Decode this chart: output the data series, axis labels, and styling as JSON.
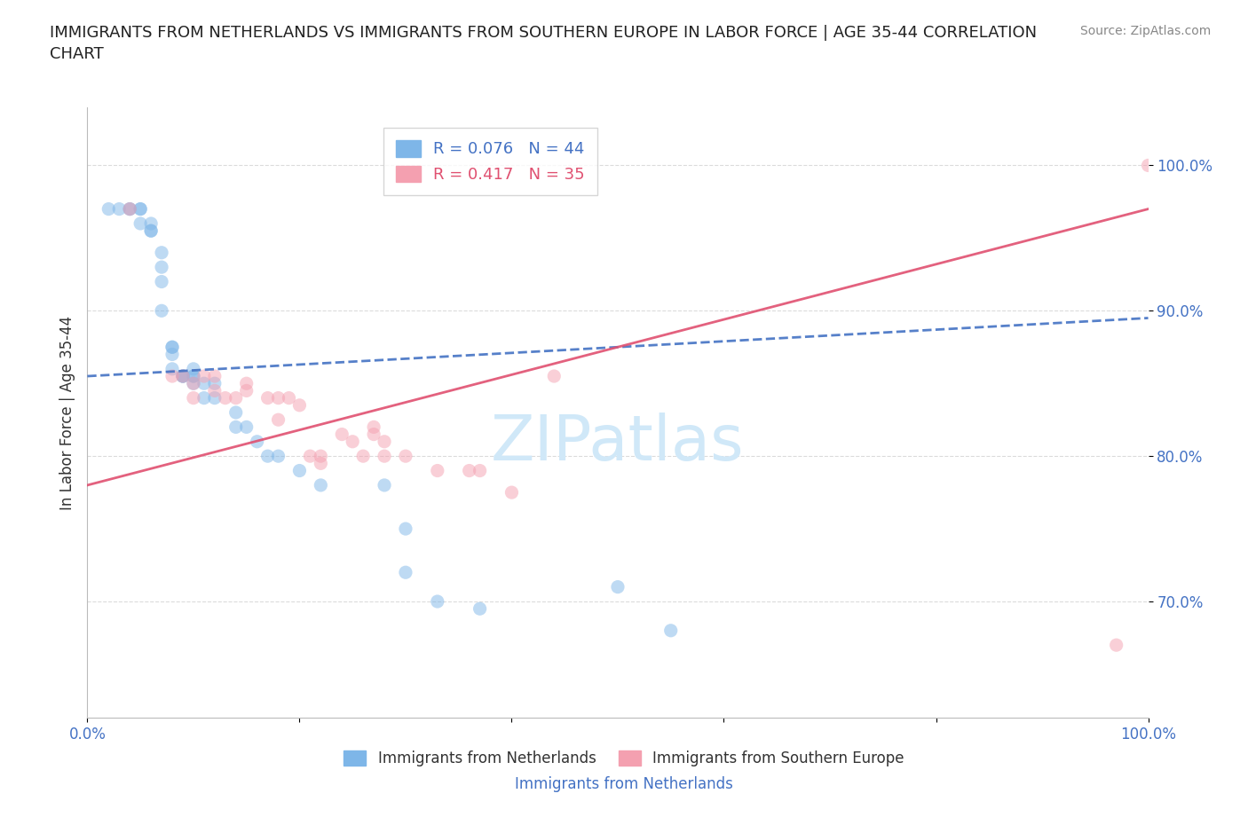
{
  "title": "IMMIGRANTS FROM NETHERLANDS VS IMMIGRANTS FROM SOUTHERN EUROPE IN LABOR FORCE | AGE 35-44 CORRELATION\nCHART",
  "xlabel": "",
  "ylabel": "In Labor Force | Age 35-44",
  "source_text": "Source: ZipAtlas.com",
  "watermark": "ZIPatlas",
  "x_label_bottom": "Immigrants from Netherlands",
  "legend_label1": "Immigrants from Netherlands",
  "legend_label2": "Immigrants from Southern Europe",
  "R1": 0.076,
  "N1": 44,
  "R2": 0.417,
  "N2": 35,
  "xlim": [
    0.0,
    1.0
  ],
  "ylim": [
    0.62,
    1.04
  ],
  "yticks": [
    0.7,
    0.8,
    0.9,
    1.0
  ],
  "ytick_labels": [
    "70.0%",
    "80.0%",
    "90.0%",
    "100.0%"
  ],
  "xticks": [
    0.0,
    0.2,
    0.4,
    0.6,
    0.8,
    1.0
  ],
  "xtick_labels": [
    "0.0%",
    "",
    "",
    "",
    "",
    "100.0%"
  ],
  "color_blue": "#7EB6E8",
  "color_pink": "#F4A0B0",
  "line_color_blue": "#4472C4",
  "line_color_pink": "#E05070",
  "grid_color": "#CCCCCC",
  "title_color": "#222222",
  "axis_label_color": "#333333",
  "tick_label_color": "#4472C4",
  "source_color": "#888888",
  "watermark_color": "#D0E8F8",
  "blue_points_x": [
    0.02,
    0.03,
    0.04,
    0.04,
    0.05,
    0.05,
    0.05,
    0.06,
    0.06,
    0.06,
    0.07,
    0.07,
    0.07,
    0.07,
    0.08,
    0.08,
    0.08,
    0.08,
    0.09,
    0.09,
    0.09,
    0.1,
    0.1,
    0.1,
    0.1,
    0.11,
    0.11,
    0.12,
    0.12,
    0.14,
    0.14,
    0.15,
    0.16,
    0.17,
    0.18,
    0.2,
    0.22,
    0.28,
    0.3,
    0.3,
    0.33,
    0.37,
    0.5,
    0.55
  ],
  "blue_points_y": [
    0.97,
    0.97,
    0.97,
    0.97,
    0.97,
    0.97,
    0.96,
    0.955,
    0.955,
    0.96,
    0.94,
    0.93,
    0.92,
    0.9,
    0.875,
    0.875,
    0.87,
    0.86,
    0.855,
    0.855,
    0.855,
    0.855,
    0.855,
    0.86,
    0.85,
    0.85,
    0.84,
    0.84,
    0.85,
    0.83,
    0.82,
    0.82,
    0.81,
    0.8,
    0.8,
    0.79,
    0.78,
    0.78,
    0.75,
    0.72,
    0.7,
    0.695,
    0.71,
    0.68
  ],
  "pink_points_x": [
    0.04,
    0.08,
    0.09,
    0.1,
    0.1,
    0.11,
    0.12,
    0.12,
    0.13,
    0.14,
    0.15,
    0.15,
    0.17,
    0.18,
    0.18,
    0.19,
    0.2,
    0.21,
    0.22,
    0.22,
    0.24,
    0.25,
    0.26,
    0.27,
    0.27,
    0.28,
    0.28,
    0.3,
    0.33,
    0.36,
    0.37,
    0.4,
    0.44,
    0.97,
    1.0
  ],
  "pink_points_y": [
    0.97,
    0.855,
    0.855,
    0.84,
    0.85,
    0.855,
    0.855,
    0.845,
    0.84,
    0.84,
    0.85,
    0.845,
    0.84,
    0.84,
    0.825,
    0.84,
    0.835,
    0.8,
    0.8,
    0.795,
    0.815,
    0.81,
    0.8,
    0.82,
    0.815,
    0.8,
    0.81,
    0.8,
    0.79,
    0.79,
    0.79,
    0.775,
    0.855,
    0.67,
    1.0
  ],
  "blue_line_x": [
    0.0,
    1.0
  ],
  "blue_line_y_intercept": 0.855,
  "blue_line_slope": 0.04,
  "pink_line_x": [
    0.0,
    1.0
  ],
  "pink_line_y_intercept": 0.78,
  "pink_line_slope": 0.19,
  "marker_size": 120,
  "marker_alpha": 0.5,
  "line_alpha": 0.9,
  "font_family": "DejaVu Sans"
}
